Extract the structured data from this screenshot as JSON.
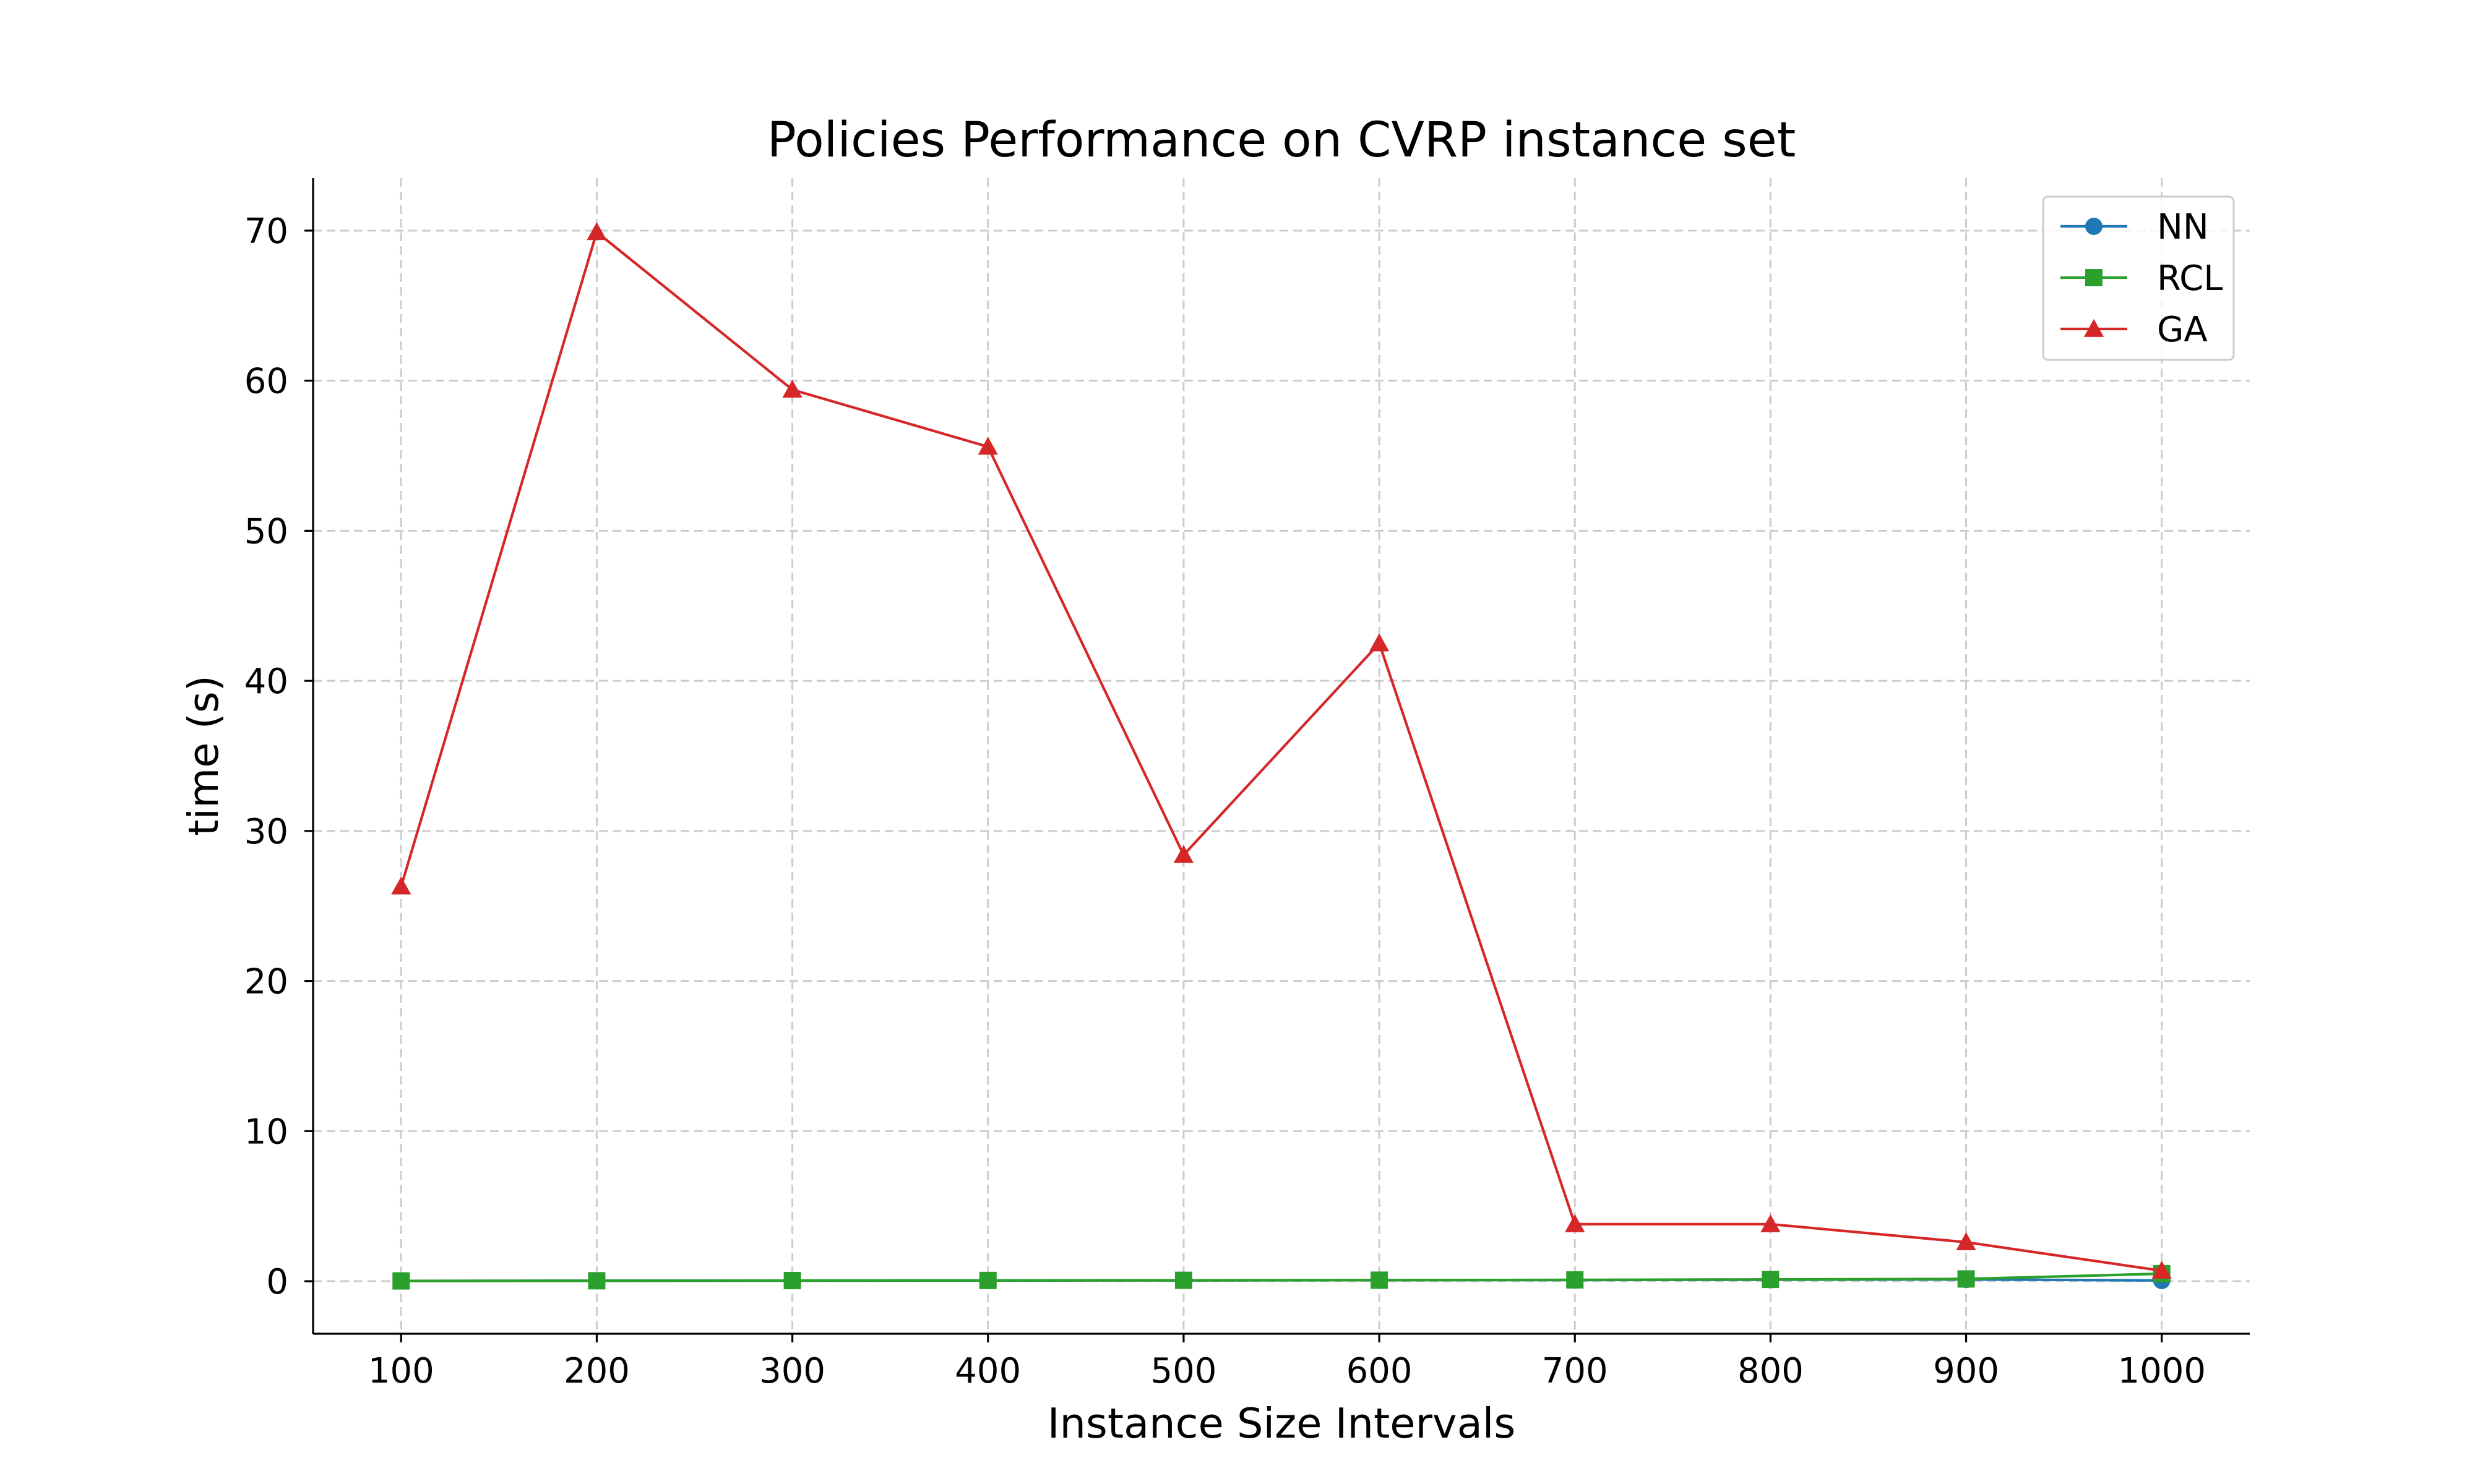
{
  "chart_data": {
    "type": "line",
    "title": "Policies Performance on CVRP instance set",
    "xlabel": "Instance Size Intervals",
    "ylabel": "time (s)",
    "x": [
      100,
      200,
      300,
      400,
      500,
      600,
      700,
      800,
      900,
      1000
    ],
    "xlim": [
      55,
      1045
    ],
    "ylim": [
      -3.5,
      73.5
    ],
    "yticks": [
      0,
      10,
      20,
      30,
      40,
      50,
      60,
      70
    ],
    "xticks": [
      100,
      200,
      300,
      400,
      500,
      600,
      700,
      800,
      900,
      1000
    ],
    "grid": true,
    "legend_position": "top-right",
    "series": [
      {
        "name": "NN",
        "color": "#1f77b4",
        "marker": "circle",
        "values": [
          0.02,
          0.03,
          0.04,
          0.05,
          0.06,
          0.07,
          0.08,
          0.1,
          0.12,
          0.05
        ]
      },
      {
        "name": "RCL",
        "color": "#2ca02c",
        "marker": "square",
        "values": [
          0.02,
          0.03,
          0.04,
          0.05,
          0.06,
          0.07,
          0.09,
          0.12,
          0.15,
          0.5
        ]
      },
      {
        "name": "GA",
        "color": "#d62728",
        "marker": "triangle",
        "values": [
          26.3,
          69.9,
          59.4,
          55.6,
          28.4,
          42.5,
          3.8,
          3.8,
          2.6,
          0.7
        ]
      }
    ]
  }
}
